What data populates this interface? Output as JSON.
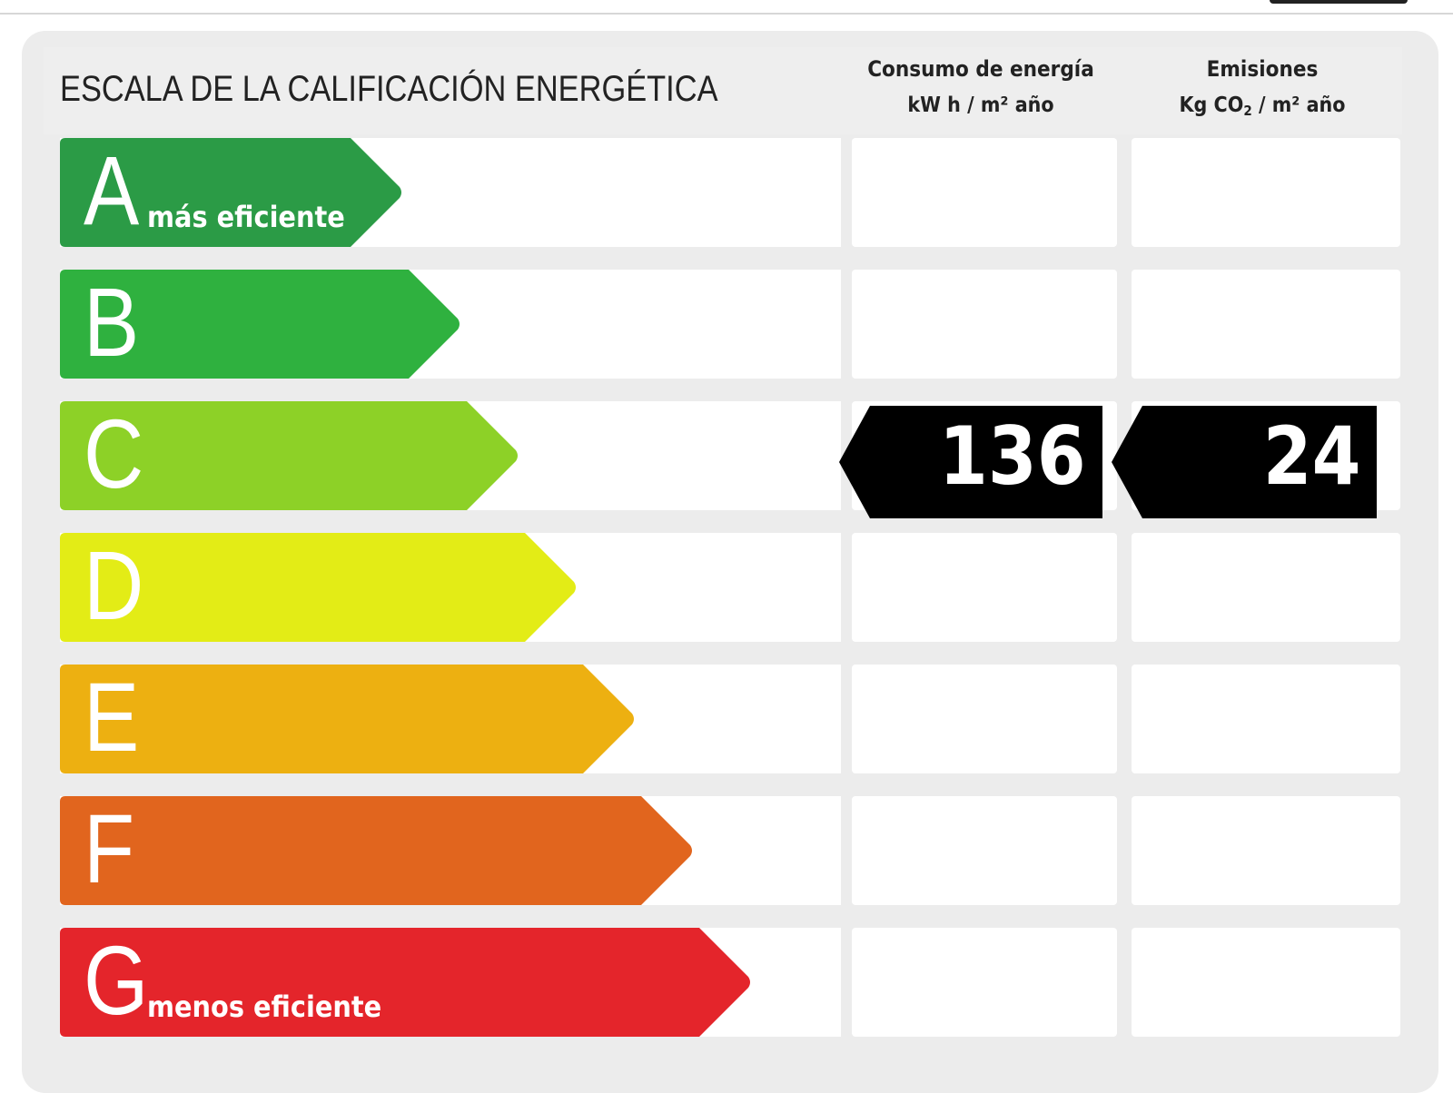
{
  "chart_data": {
    "type": "table",
    "title": "ESCALA DE LA CALIFICACIÓN ENERGÉTICA",
    "columns": [
      {
        "label": "Consumo de energía",
        "unit": "kW h / m² año"
      },
      {
        "label": "Emisiones",
        "unit_prefix": "Kg CO",
        "unit_sub": "2",
        "unit_suffix": " / m² año"
      }
    ],
    "classes": [
      {
        "letter": "A",
        "label": "más eficiente",
        "color": "#2b9b46"
      },
      {
        "letter": "B",
        "label": "",
        "color": "#2fb13f"
      },
      {
        "letter": "C",
        "label": "",
        "color": "#8dd127"
      },
      {
        "letter": "D",
        "label": "",
        "color": "#e3ec16"
      },
      {
        "letter": "E",
        "label": "",
        "color": "#edb011"
      },
      {
        "letter": "F",
        "label": "",
        "color": "#e1651e"
      },
      {
        "letter": "G",
        "label": "menos eficiente",
        "color": "#e4252b"
      }
    ],
    "rating": {
      "class": "C",
      "energy_value": 136,
      "emissions_value": 24
    }
  }
}
